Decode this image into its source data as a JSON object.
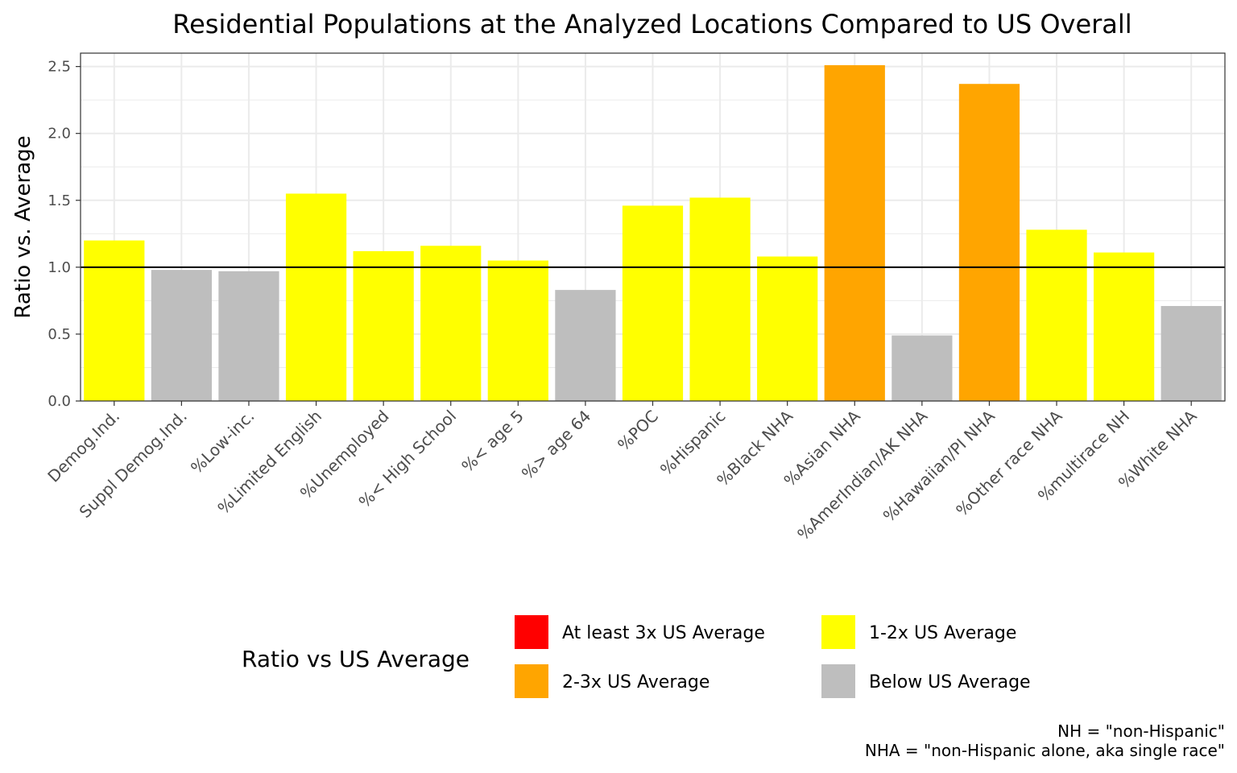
{
  "chart_data": {
    "type": "bar",
    "title": "Residential Populations at the Analyzed Locations Compared to US Overall",
    "xlabel": "",
    "ylabel": "Ratio vs. Average",
    "ylim": [
      0,
      2.6
    ],
    "yticks": [
      "0.0",
      "0.5",
      "1.0",
      "1.5",
      "2.0",
      "2.5"
    ],
    "reference_line": 1.0,
    "grid": true,
    "categories": [
      "Demog.Ind.",
      "Suppl Demog.Ind.",
      "%Low-inc.",
      "%Limited English",
      "%Unemployed",
      "%< High School",
      "%< age 5",
      "%> age 64",
      "%POC",
      "%Hispanic",
      "%Black NHA",
      "%Asian NHA",
      "%AmerIndian/AK NHA",
      "%Hawaiian/PI NHA",
      "%Other race NHA",
      "%multirace NH",
      "%White NHA"
    ],
    "values": [
      1.2,
      0.98,
      0.97,
      1.55,
      1.12,
      1.16,
      1.05,
      0.83,
      1.46,
      1.52,
      1.08,
      2.51,
      0.49,
      2.37,
      1.28,
      1.11,
      0.71
    ],
    "bar_classes": [
      "1-2x US Average",
      "Below US Average",
      "Below US Average",
      "1-2x US Average",
      "1-2x US Average",
      "1-2x US Average",
      "1-2x US Average",
      "Below US Average",
      "1-2x US Average",
      "1-2x US Average",
      "1-2x US Average",
      "2-3x US Average",
      "Below US Average",
      "2-3x US Average",
      "1-2x US Average",
      "1-2x US Average",
      "Below US Average"
    ],
    "legend": {
      "title": "Ratio vs US Average",
      "placement": "bottom",
      "entries": [
        {
          "label": "At least 3x US Average",
          "color": "#ff0000"
        },
        {
          "label": "2-3x US Average",
          "color": "#ffa500"
        },
        {
          "label": "1-2x US Average",
          "color": "#ffff00"
        },
        {
          "label": "Below US Average",
          "color": "#bebebe"
        }
      ]
    },
    "caption": [
      "NH = \"non-Hispanic\"",
      "NHA = \"non-Hispanic alone, aka single race\""
    ]
  }
}
